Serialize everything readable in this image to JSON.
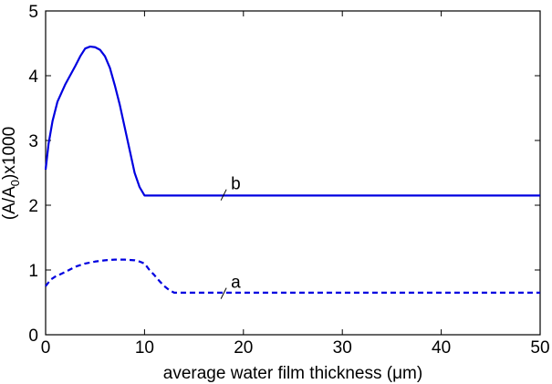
{
  "chart_data": {
    "type": "line",
    "title": "",
    "xlabel": "average water film thickness (μm)",
    "ylabel_parts": {
      "prefix": "(A/A",
      "subscript": "0",
      "suffix": ")x1000"
    },
    "xlim": [
      0,
      50
    ],
    "ylim": [
      0,
      5
    ],
    "xticks": [
      0,
      10,
      20,
      30,
      40,
      50
    ],
    "yticks": [
      0,
      1,
      2,
      3,
      4,
      5
    ],
    "grid": false,
    "series": [
      {
        "name": "b",
        "label": "b",
        "style": "solid",
        "color": "#0000e0",
        "label_at": {
          "x": 18,
          "y": 2.3
        },
        "points": [
          [
            0,
            2.55
          ],
          [
            0.3,
            2.95
          ],
          [
            0.7,
            3.3
          ],
          [
            1.2,
            3.6
          ],
          [
            2,
            3.87
          ],
          [
            3,
            4.15
          ],
          [
            3.5,
            4.3
          ],
          [
            4,
            4.42
          ],
          [
            4.5,
            4.45
          ],
          [
            5,
            4.44
          ],
          [
            5.5,
            4.4
          ],
          [
            6,
            4.3
          ],
          [
            6.5,
            4.12
          ],
          [
            7,
            3.85
          ],
          [
            7.5,
            3.55
          ],
          [
            8,
            3.2
          ],
          [
            8.5,
            2.85
          ],
          [
            9,
            2.5
          ],
          [
            9.5,
            2.28
          ],
          [
            10,
            2.15
          ],
          [
            12,
            2.15
          ],
          [
            20,
            2.15
          ],
          [
            30,
            2.15
          ],
          [
            40,
            2.15
          ],
          [
            50,
            2.15
          ]
        ]
      },
      {
        "name": "a",
        "label": "a",
        "style": "dashed",
        "color": "#0000e0",
        "label_at": {
          "x": 18,
          "y": 0.78
        },
        "points": [
          [
            0,
            0.75
          ],
          [
            0.5,
            0.85
          ],
          [
            1,
            0.9
          ],
          [
            2,
            0.97
          ],
          [
            3,
            1.05
          ],
          [
            4,
            1.1
          ],
          [
            5,
            1.13
          ],
          [
            6,
            1.15
          ],
          [
            7,
            1.16
          ],
          [
            8,
            1.16
          ],
          [
            9,
            1.15
          ],
          [
            9.5,
            1.13
          ],
          [
            10,
            1.1
          ],
          [
            10.5,
            1.0
          ],
          [
            11,
            0.92
          ],
          [
            11.5,
            0.83
          ],
          [
            12,
            0.75
          ],
          [
            12.5,
            0.69
          ],
          [
            13,
            0.65
          ],
          [
            15,
            0.65
          ],
          [
            20,
            0.65
          ],
          [
            30,
            0.65
          ],
          [
            40,
            0.65
          ],
          [
            50,
            0.65
          ]
        ]
      }
    ]
  }
}
